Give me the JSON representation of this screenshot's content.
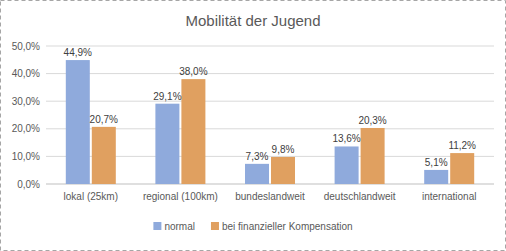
{
  "chart_data": {
    "type": "bar",
    "title": "Mobilität der Jugend",
    "categories": [
      "lokal (25km)",
      "regional (100km)",
      "bundeslandweit",
      "deutschlandweit",
      "international"
    ],
    "series": [
      {
        "name": "normal",
        "color": "#8faadc",
        "values": [
          44.9,
          29.1,
          7.3,
          13.6,
          5.1
        ],
        "value_labels": [
          "44,9%",
          "29,1%",
          "7,3%",
          "13,6%",
          "5,1%"
        ]
      },
      {
        "name": "bei finanzieller Kompensation",
        "color": "#e0a060",
        "values": [
          20.7,
          38.0,
          9.8,
          20.3,
          11.2
        ],
        "value_labels": [
          "20,7%",
          "38,0%",
          "9,8%",
          "20,3%",
          "11,2%"
        ]
      }
    ],
    "ylim": [
      0,
      50
    ],
    "yticks": [
      {
        "value": 0,
        "label": "0,0%"
      },
      {
        "value": 10,
        "label": "10,0%"
      },
      {
        "value": 20,
        "label": "20,0%"
      },
      {
        "value": 30,
        "label": "30,0%"
      },
      {
        "value": 40,
        "label": "40,0%"
      },
      {
        "value": 50,
        "label": "50,0%"
      }
    ],
    "grid": true,
    "legend": "bottom",
    "data_labels": true
  }
}
